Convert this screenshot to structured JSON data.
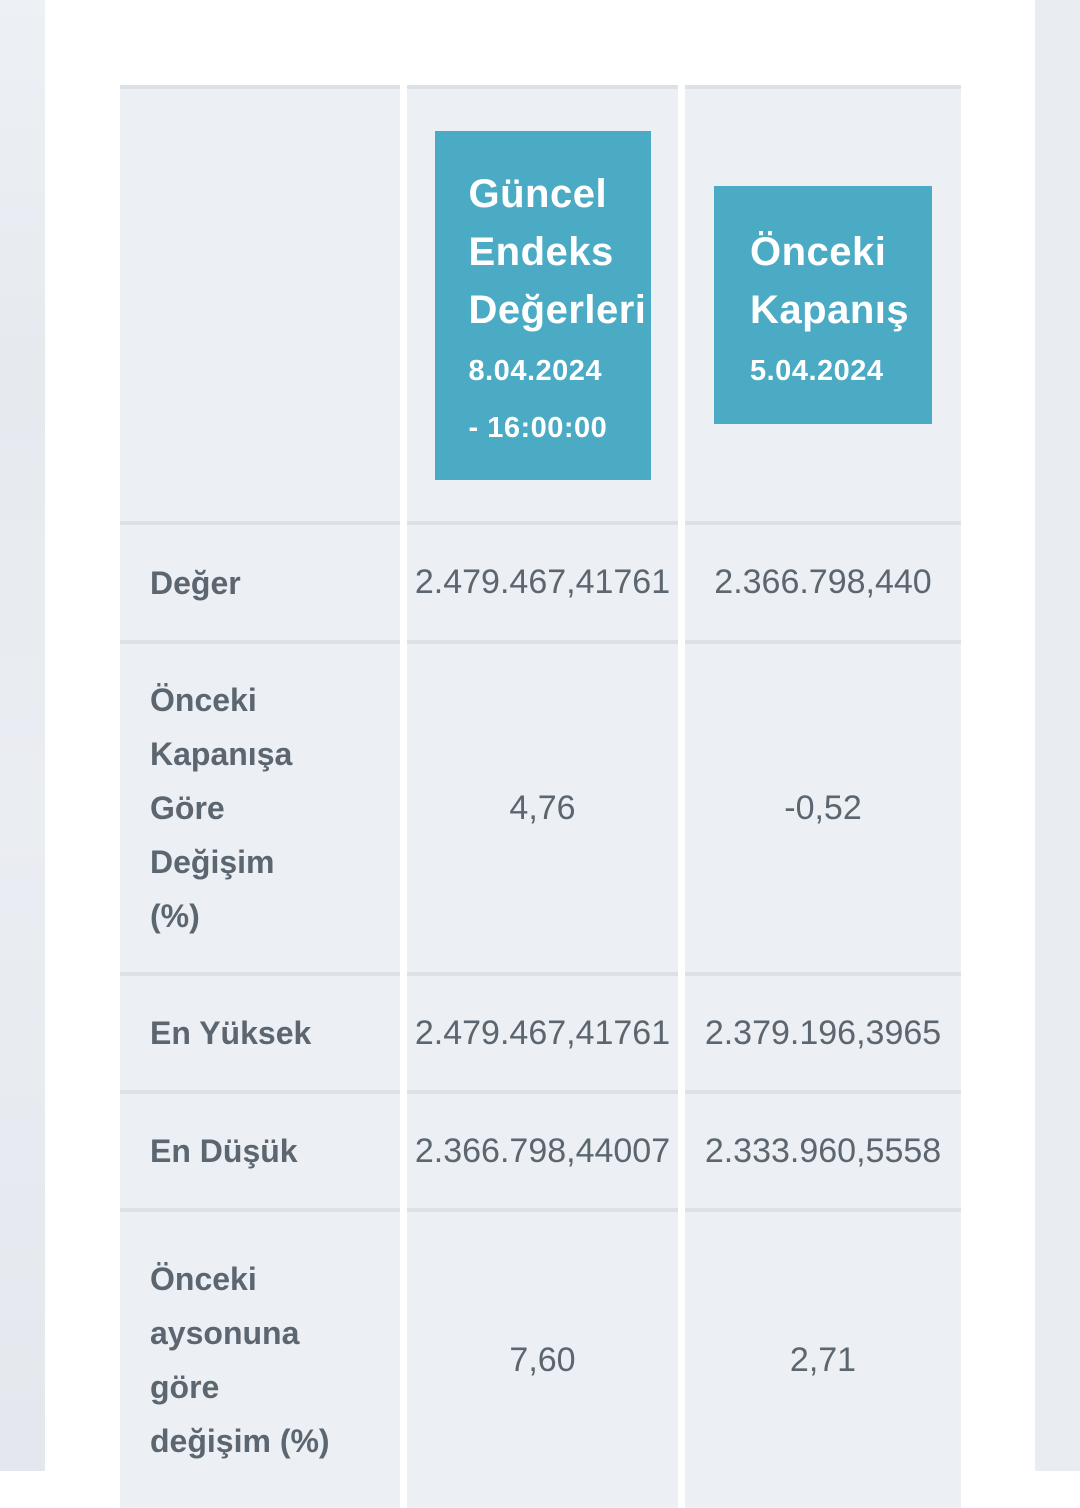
{
  "colors": {
    "accent_teal": "#4baac4",
    "cell_background": "#eceff3",
    "row_divider": "#dde0e5",
    "page_background": "#e9ecf1",
    "text_slate": "#5c6670",
    "positive_green": "#3aae3e",
    "negative_red": "#d62b31"
  },
  "table": {
    "headers": [
      {
        "title_lines": [
          "Güncel",
          "Endeks",
          "Değerleri"
        ],
        "date": "8.04.2024",
        "time": "- 16:00:00"
      },
      {
        "title_lines": [
          "Önceki",
          "Kapanış"
        ],
        "date": "5.04.2024"
      }
    ],
    "rows": [
      {
        "label_lines": [
          "Değer"
        ],
        "values": [
          {
            "text": "2.479.467,41761",
            "color": "gray"
          },
          {
            "text": "2.366.798,440",
            "color": "gray"
          }
        ]
      },
      {
        "label_lines": [
          "Önceki",
          "Kapanışa",
          "Göre",
          "Değişim",
          "(%)"
        ],
        "values": [
          {
            "text": "4,76",
            "color": "green"
          },
          {
            "text": "-0,52",
            "color": "red"
          }
        ]
      },
      {
        "label_lines": [
          "En Yüksek"
        ],
        "values": [
          {
            "text": "2.479.467,41761",
            "color": "gray"
          },
          {
            "text": "2.379.196,3965",
            "color": "gray"
          }
        ]
      },
      {
        "label_lines": [
          "En Düşük"
        ],
        "values": [
          {
            "text": "2.366.798,44007",
            "color": "gray"
          },
          {
            "text": "2.333.960,5558",
            "color": "gray"
          }
        ]
      },
      {
        "label_lines": [
          "Önceki",
          "aysonuna",
          "göre",
          "değişim (%)"
        ],
        "values": [
          {
            "text": "7,60",
            "color": "green"
          },
          {
            "text": "2,71",
            "color": "green"
          }
        ]
      }
    ]
  }
}
